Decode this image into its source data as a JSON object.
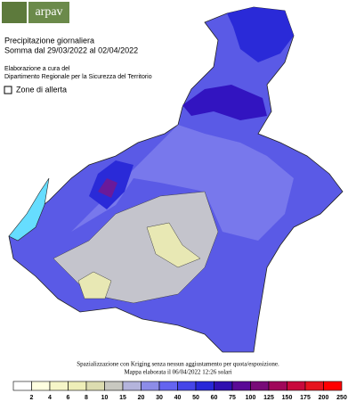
{
  "header": {
    "logo": "arpav",
    "title": "Precipitazione giornaliera",
    "period": "Somma dal 29/03/2022 al 02/04/2022",
    "credit_1": "Elaborazione a cura del",
    "credit_2": "Dipartimento Regionale per la Sicurezza del Territorio",
    "checkbox_label": "Zone di allerta"
  },
  "footer": {
    "line_1": "Spazializzazione con Kriging senza nessun aggiustamento per quota/esposizione.",
    "line_2": "Mappa elaborata il 06/04/2022 12:26 solari"
  },
  "legend": {
    "values": [
      2,
      4,
      6,
      8,
      10,
      15,
      20,
      30,
      40,
      50,
      60,
      75,
      100,
      125,
      150,
      175,
      200,
      250
    ],
    "colors": [
      "#ffffff",
      "#ffffe0",
      "#f6f6c8",
      "#eeeeb8",
      "#dcdcb0",
      "#c8c8c0",
      "#b4b4dc",
      "#8c8ce8",
      "#6464f0",
      "#4646e8",
      "#2828d8",
      "#3010b0",
      "#5a0a96",
      "#780a78",
      "#a0085a",
      "#c80a3c",
      "#e6141e",
      "#ff0000"
    ]
  }
}
